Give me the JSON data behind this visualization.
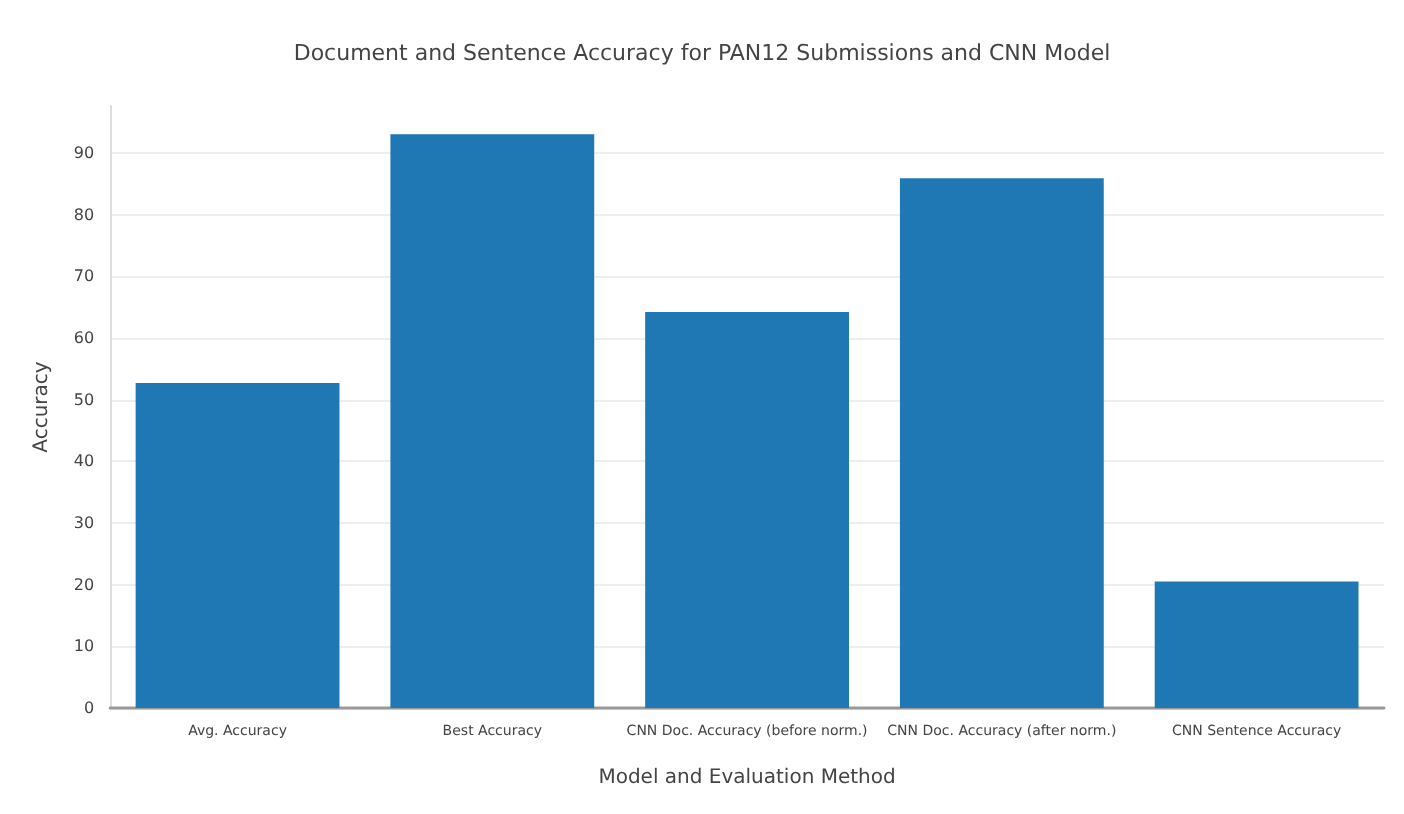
{
  "chart_data": {
    "type": "bar",
    "title": "Document and Sentence Accuracy for PAN12 Submissions and CNN Model",
    "xlabel": "Model and Evaluation Method",
    "ylabel": "Accuracy",
    "categories": [
      "Avg. Accuracy",
      "Best Accuracy",
      "CNN Doc. Accuracy (before norm.)",
      "CNN Doc. Accuracy (after norm.)",
      "CNN Sentence Accuracy"
    ],
    "values": [
      52.7,
      93.0,
      64.2,
      85.9,
      20.5
    ],
    "color": "#1f77b4",
    "ylim": [
      0,
      97.6
    ],
    "yticks": [
      0,
      10,
      20,
      30,
      40,
      50,
      60,
      70,
      80,
      90
    ],
    "grid": "y"
  }
}
